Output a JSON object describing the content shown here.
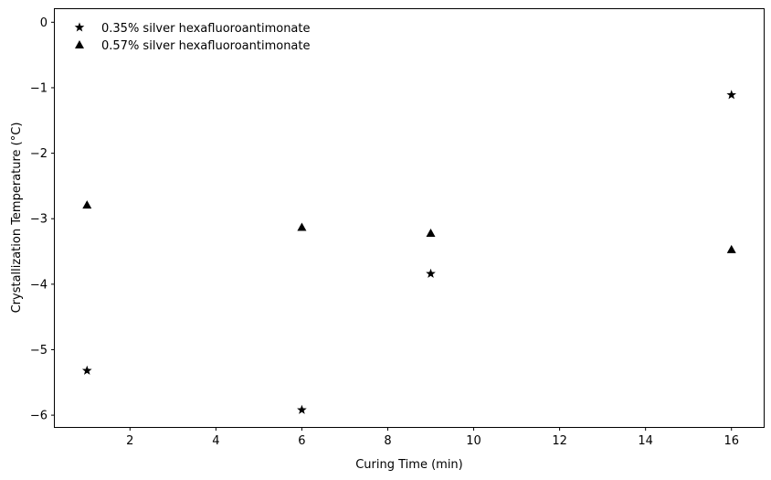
{
  "chart_data": {
    "type": "scatter",
    "title": "",
    "xlabel": "Curing Time (min)",
    "ylabel": "Crystallization Temperature (°C)",
    "xlim": [
      0.25,
      16.75
    ],
    "ylim": [
      -6.18,
      0.2
    ],
    "xticks": [
      2,
      4,
      6,
      8,
      10,
      12,
      14,
      16
    ],
    "yticks": [
      0,
      -1,
      -2,
      -3,
      -4,
      -5,
      -6
    ],
    "xtick_labels": [
      "2",
      "4",
      "6",
      "8",
      "10",
      "12",
      "14",
      "16"
    ],
    "ytick_labels": [
      "0",
      "−1",
      "−2",
      "−3",
      "−4",
      "−5",
      "−6"
    ],
    "grid": false,
    "legend_position": "upper-left",
    "series": [
      {
        "name": "0.35% silver hexafluoroantimonate",
        "marker": "star",
        "color": "#000000",
        "x": [
          1,
          6,
          9,
          16
        ],
        "y": [
          -5.32,
          -5.92,
          -3.84,
          -1.11
        ]
      },
      {
        "name": "0.57% silver hexafluoroantimonate",
        "marker": "triangle",
        "color": "#000000",
        "x": [
          1,
          6,
          9,
          16
        ],
        "y": [
          -2.79,
          -3.13,
          -3.22,
          -3.47
        ]
      }
    ]
  }
}
